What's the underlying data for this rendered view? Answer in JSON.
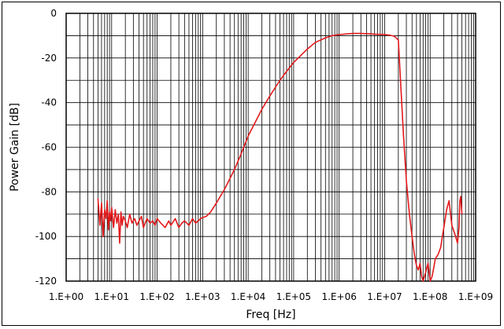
{
  "chart_data": {
    "type": "line",
    "title": "",
    "xlabel": "Freq [Hz]",
    "ylabel": "Power Gain [dB]",
    "x_scale": "log",
    "xlim": [
      1,
      1000000000
    ],
    "ylim": [
      -120,
      0
    ],
    "x_ticks": [
      1,
      10,
      100,
      1000,
      10000,
      100000,
      1000000,
      10000000,
      100000000,
      1000000000
    ],
    "x_tick_labels": [
      "1.E+00",
      "1.E+01",
      "1.E+02",
      "1.E+03",
      "1.E+04",
      "1.E+05",
      "1.E+06",
      "1.E+07",
      "1.E+08",
      "1.E+09"
    ],
    "y_ticks": [
      0,
      -20,
      -40,
      -60,
      -80,
      -100,
      -120
    ],
    "y_tick_labels": [
      "0",
      "-20",
      "-40",
      "-60",
      "-80",
      "-100",
      "-120"
    ],
    "grid": true,
    "legend": "none",
    "series": [
      {
        "color": "#e31a1c",
        "x": [
          5,
          5.5,
          6,
          6.5,
          7,
          7.5,
          8,
          8.5,
          9,
          9.5,
          10,
          11,
          12,
          13,
          14,
          15,
          16,
          17,
          18,
          20,
          22,
          25,
          28,
          32,
          36,
          40,
          45,
          50,
          60,
          70,
          80,
          90,
          100,
          120,
          150,
          180,
          200,
          250,
          300,
          350,
          400,
          500,
          600,
          700,
          800,
          900,
          1000,
          1200,
          1500,
          2000,
          3000,
          5000,
          7000,
          10000,
          15000,
          20000,
          30000,
          50000,
          70000,
          100000,
          150000,
          200000,
          300000,
          500000,
          700000,
          1000000,
          2000000,
          3000000,
          5000000,
          7000000,
          10000000,
          13000000,
          16000000,
          18000000,
          20000000,
          21000000,
          23000000,
          26000000,
          30000000,
          35000000,
          40000000,
          45000000,
          50000000,
          55000000,
          60000000,
          65000000,
          70000000,
          80000000,
          90000000,
          100000000,
          110000000,
          120000000,
          130000000,
          150000000,
          170000000,
          200000000,
          230000000,
          260000000,
          300000000,
          350000000,
          400000000,
          430000000,
          450000000,
          470000000,
          500000000
        ],
        "y": [
          -83,
          -95,
          -85,
          -100,
          -88,
          -92,
          -84,
          -97,
          -89,
          -93,
          -87,
          -96,
          -88,
          -94,
          -90,
          -103,
          -89,
          -95,
          -91,
          -93,
          -96,
          -90,
          -94,
          -92,
          -95,
          -93,
          -91,
          -96,
          -92,
          -94,
          -93,
          -95,
          -92,
          -94,
          -96,
          -93,
          -95,
          -92,
          -96,
          -94,
          -93,
          -95,
          -92,
          -94,
          -93,
          -92,
          -91.5,
          -91,
          -89,
          -85,
          -79,
          -70,
          -63,
          -55,
          -48,
          -43,
          -37,
          -30,
          -26,
          -22,
          -18.5,
          -16,
          -13,
          -11,
          -10,
          -9.5,
          -9,
          -9,
          -9.2,
          -9.4,
          -9.5,
          -9.8,
          -10.2,
          -11,
          -12,
          -20,
          -35,
          -55,
          -75,
          -90,
          -100,
          -108,
          -113,
          -115,
          -112,
          -118,
          -120,
          -116,
          -112,
          -120,
          -118,
          -114,
          -110,
          -108,
          -105,
          -96,
          -88,
          -84,
          -95,
          -99,
          -103,
          -96,
          -84,
          -82,
          -90
        ]
      }
    ]
  }
}
